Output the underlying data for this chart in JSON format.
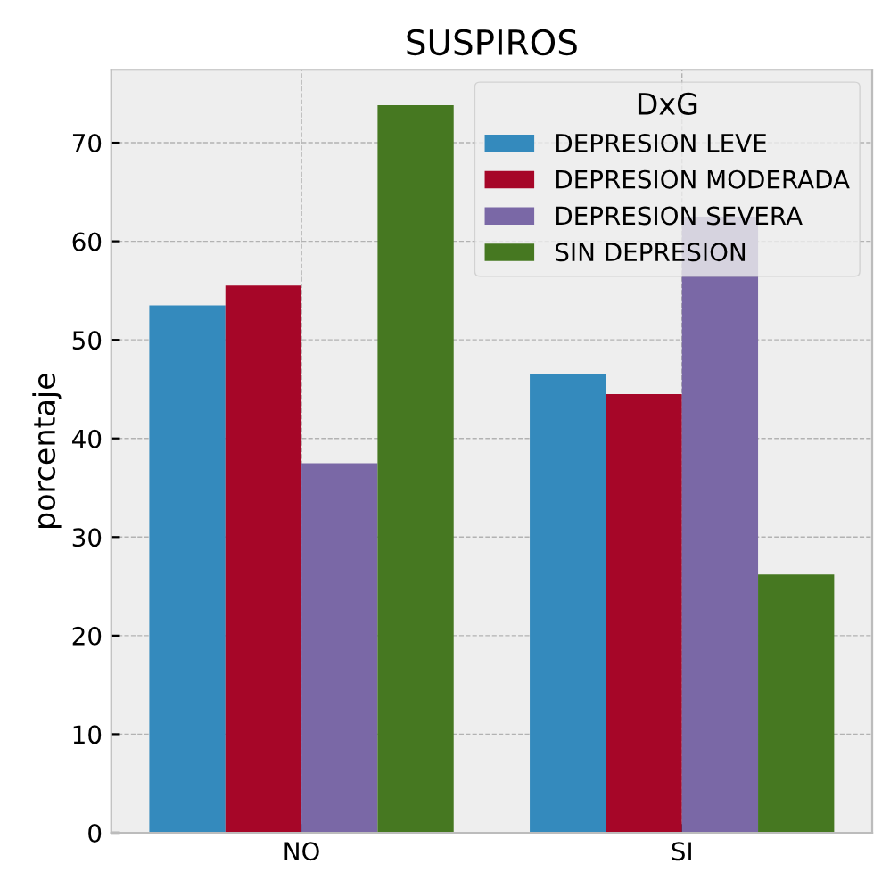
{
  "chart_data": {
    "type": "bar",
    "title": "SUSPIROS",
    "ylabel": "porcentaje",
    "legend_title": "DxG",
    "categories": [
      "NO",
      "SI"
    ],
    "series": [
      {
        "name": "DEPRESION LEVE",
        "color": "#348abd",
        "values": [
          53.5,
          46.5
        ]
      },
      {
        "name": "DEPRESION MODERADA",
        "color": "#a60628",
        "values": [
          55.5,
          44.5
        ]
      },
      {
        "name": "DEPRESION SEVERA",
        "color": "#7a68a6",
        "values": [
          37.5,
          62.5
        ]
      },
      {
        "name": "SIN DEPRESION",
        "color": "#467821",
        "values": [
          73.8,
          26.2
        ]
      }
    ],
    "ylim": [
      0,
      77.4
    ],
    "yticks": [
      0,
      10,
      20,
      30,
      40,
      50,
      60,
      70
    ],
    "grid": true,
    "legend": "top right"
  }
}
